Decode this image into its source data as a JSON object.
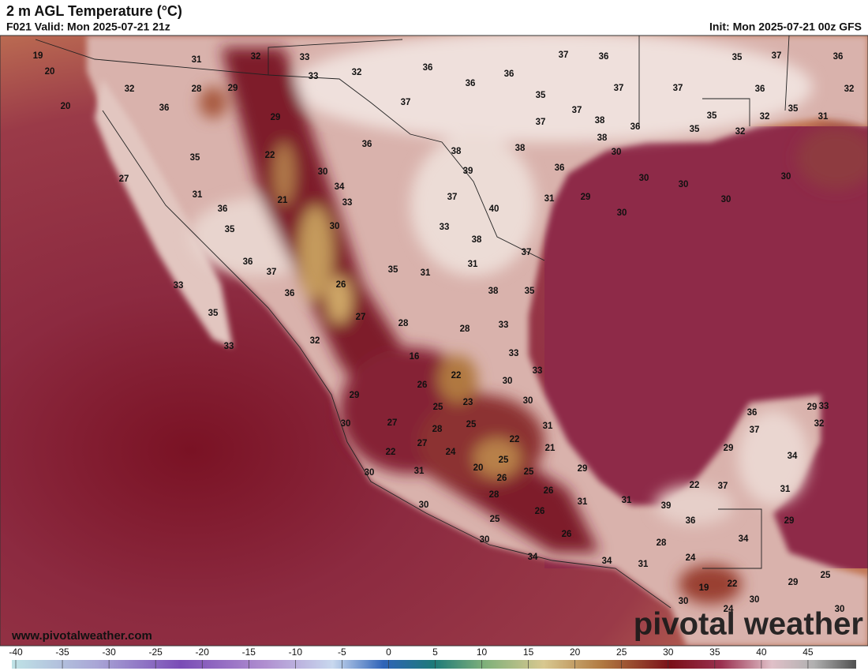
{
  "header": {
    "title": "2 m AGL Temperature (°C)",
    "valid": "F021 Valid: Mon 2025-07-21 21z",
    "init": "Init: Mon 2025-07-21 00z GFS"
  },
  "map": {
    "temperature_labels": [
      19,
      20,
      20,
      31,
      32,
      33,
      37,
      36,
      35,
      37,
      36,
      33,
      32,
      36,
      36,
      36,
      35,
      37,
      37,
      36,
      32,
      32,
      28,
      29,
      36,
      37,
      37,
      35,
      35,
      32,
      31,
      29,
      37,
      38,
      36,
      35,
      32,
      36,
      38,
      38,
      38,
      30,
      22,
      35,
      30,
      39,
      36,
      30,
      30,
      30,
      27,
      34,
      31,
      21,
      33,
      37,
      31,
      29,
      30,
      36,
      40,
      30,
      35,
      30,
      33,
      38,
      36,
      37,
      31,
      37,
      35,
      31,
      33,
      26,
      36,
      38,
      35,
      35,
      27,
      28,
      33,
      28,
      33,
      32,
      33,
      16,
      22,
      33,
      26,
      30,
      29,
      30,
      36,
      29,
      33,
      25,
      23,
      37,
      32,
      27,
      30,
      25,
      28,
      31,
      22,
      27,
      24,
      21,
      29,
      34,
      22,
      25,
      20,
      25,
      29,
      31,
      30,
      26,
      22,
      37,
      31,
      28,
      26,
      31,
      31,
      39,
      30,
      26,
      36,
      29,
      25,
      26,
      34,
      30,
      28,
      34,
      24,
      34,
      31,
      25,
      19,
      22,
      29,
      30,
      30,
      24,
      30
    ]
  },
  "watermark": "www.pivotalweather.com",
  "logo": "pivotal weather",
  "colorbar": {
    "lim": [
      -40,
      50
    ],
    "ticks": [
      -40,
      -35,
      -30,
      -25,
      -20,
      -15,
      -10,
      -5,
      0,
      5,
      10,
      15,
      20,
      25,
      30,
      35,
      40,
      45
    ]
  }
}
